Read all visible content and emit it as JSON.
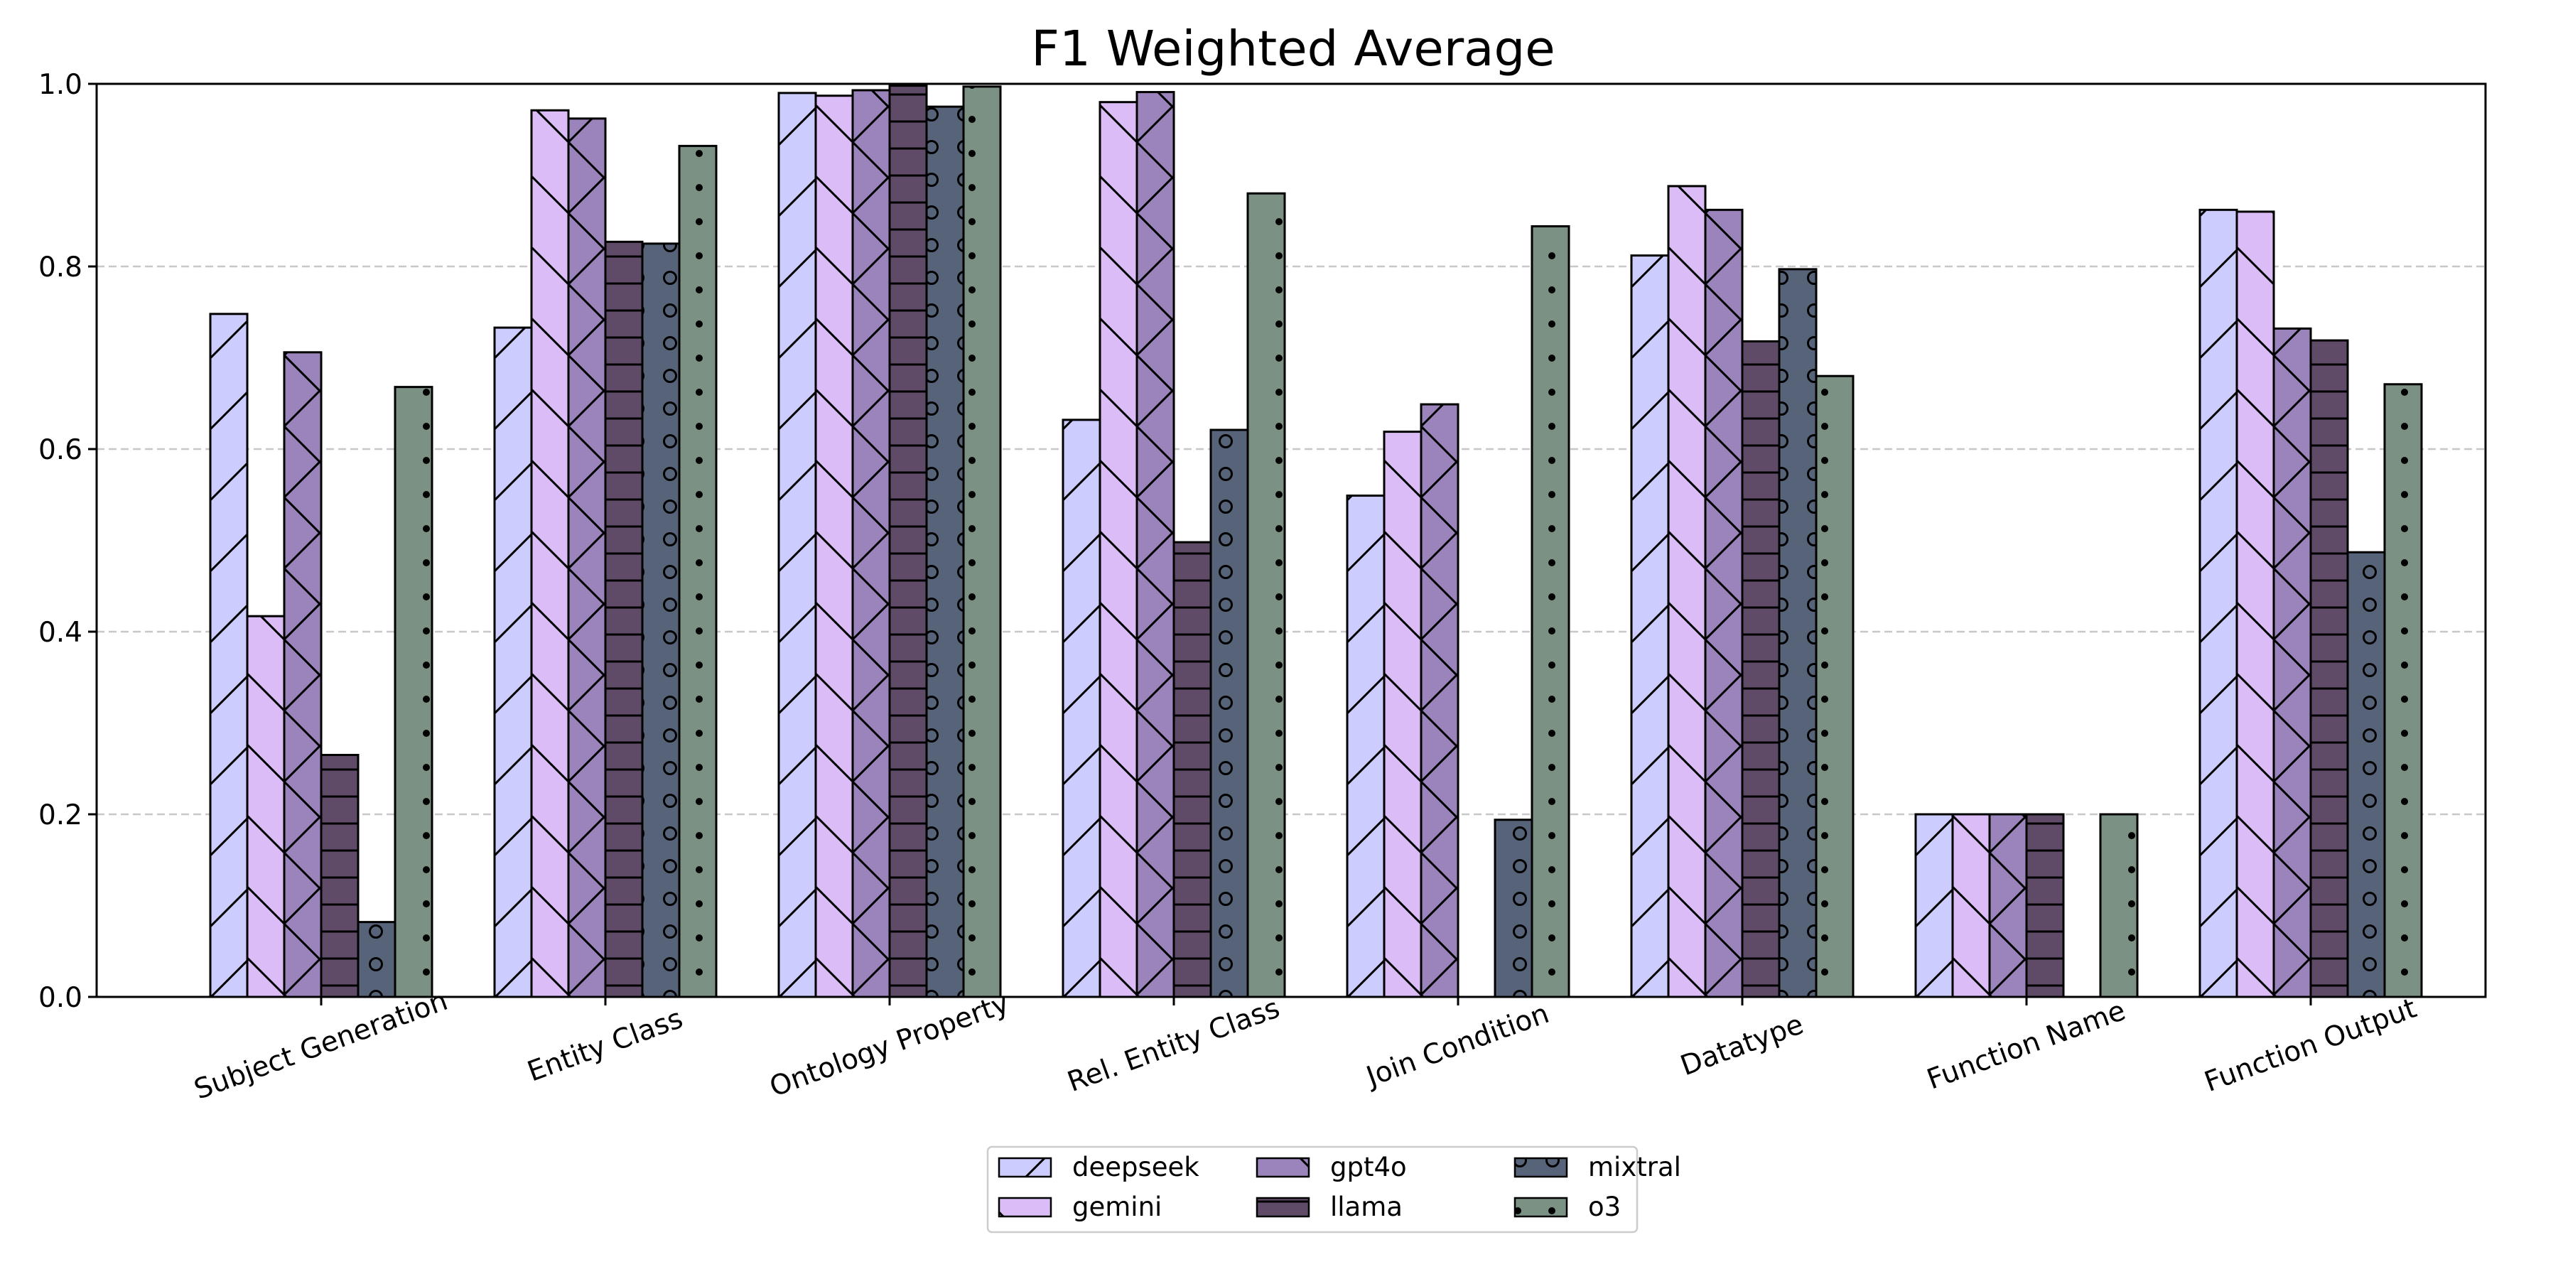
{
  "chart_data": {
    "type": "bar",
    "title": "F1 Weighted Average",
    "xlabel": "",
    "ylabel": "",
    "ylim": [
      0,
      1.0
    ],
    "yticks": [
      "0.0",
      "0.2",
      "0.4",
      "0.6",
      "0.8",
      "1.0"
    ],
    "grid": "horizontal dashed",
    "legend_position": "bottom-center",
    "categories": [
      "Subject Generation",
      "Entity Class",
      "Ontology Property",
      "Rel. Entity Class",
      "Join Condition",
      "Datatype",
      "Function Name",
      "Function Output"
    ],
    "series": [
      {
        "name": "deepseek",
        "color": "#ccccff",
        "hatch": "diagonal",
        "values": [
          0.748,
          0.733,
          0.99,
          0.632,
          0.549,
          0.812,
          0.2,
          0.862
        ]
      },
      {
        "name": "gemini",
        "color": "#dbbcf6",
        "hatch": "backslash",
        "values": [
          0.417,
          0.971,
          0.987,
          0.98,
          0.619,
          0.888,
          0.2,
          0.86
        ]
      },
      {
        "name": "gpt4o",
        "color": "#9b83bb",
        "hatch": "cross",
        "values": [
          0.706,
          0.962,
          0.993,
          0.991,
          0.649,
          0.862,
          0.2,
          0.732
        ]
      },
      {
        "name": "llama",
        "color": "#5f4a68",
        "hatch": "horizontal",
        "values": [
          0.265,
          0.827,
          0.998,
          0.498,
          0.0,
          0.718,
          0.2,
          0.719
        ]
      },
      {
        "name": "mixtral",
        "color": "#566379",
        "hatch": "ring",
        "values": [
          0.082,
          0.825,
          0.975,
          0.621,
          0.194,
          0.797,
          0.0,
          0.487
        ]
      },
      {
        "name": "o3",
        "color": "#7b9184",
        "hatch": "dot",
        "values": [
          0.668,
          0.932,
          0.997,
          0.88,
          0.844,
          0.68,
          0.2,
          0.671
        ]
      }
    ]
  }
}
